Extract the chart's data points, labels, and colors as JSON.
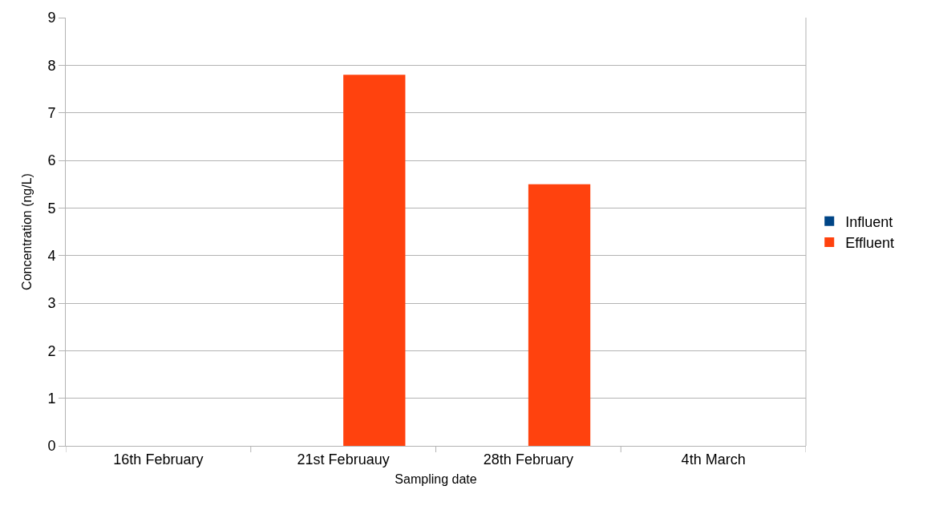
{
  "chart_data": {
    "type": "bar",
    "xlabel": "Sampling date",
    "ylabel": "Concentration (ng/L)",
    "categories": [
      "16th February",
      "21st Februauy",
      "28th February",
      "4th March"
    ],
    "series": [
      {
        "name": "Influent",
        "color": "#004586",
        "values": [
          0,
          0,
          0,
          0
        ]
      },
      {
        "name": "Effluent",
        "color": "#ff420e",
        "values": [
          0,
          7.8,
          5.5,
          0
        ]
      }
    ],
    "ylim": [
      0,
      9
    ],
    "yticks": [
      0,
      1,
      2,
      3,
      4,
      5,
      6,
      7,
      8,
      9
    ],
    "grid": "y",
    "legend": "right"
  }
}
